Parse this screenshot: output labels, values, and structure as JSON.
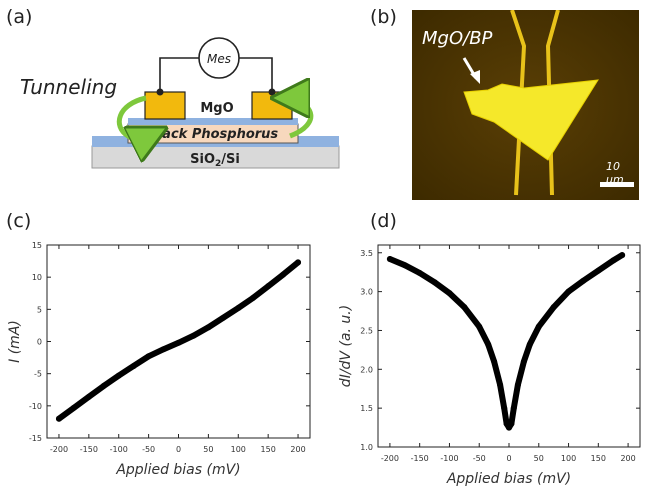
{
  "panels": {
    "a": {
      "label": "(a)",
      "tunneling": "Tunneling",
      "meter": "Mes",
      "mgo": "MgO",
      "bp": "Black Phosphorus",
      "substrate_main": "SiO",
      "substrate_sub": "2",
      "substrate_tail": "/Si",
      "colors": {
        "electrode": "#f2b90d",
        "mgo": "#8fb2e0",
        "bp": "#f7d8bd",
        "substrate": "#d9d9d9",
        "arrow": "#7ec83c"
      }
    },
    "b": {
      "label": "(b)",
      "sample_label": "MgO/BP",
      "scale_label": "10 µm",
      "colors": {
        "background": "#4a3300",
        "flake": "#f5e82a",
        "electrode": "#e8c21a"
      }
    },
    "c": {
      "label": "(c)"
    },
    "d": {
      "label": "(d)"
    }
  },
  "chart_data": [
    {
      "type": "line",
      "panel": "c",
      "xlabel": "Applied bias (mV)",
      "ylabel": "I (mA)",
      "xlim": [
        -220,
        220
      ],
      "ylim": [
        -15,
        15
      ],
      "xticks": [
        -200,
        -150,
        -100,
        -50,
        0,
        50,
        100,
        150,
        200
      ],
      "yticks": [
        -15,
        -10,
        -5,
        0,
        5,
        10,
        15
      ],
      "x": [
        -200,
        -175,
        -150,
        -125,
        -100,
        -75,
        -50,
        -25,
        0,
        25,
        50,
        75,
        100,
        125,
        150,
        175,
        200
      ],
      "y": [
        -12,
        -10.3,
        -8.6,
        -6.9,
        -5.3,
        -3.8,
        -2.3,
        -1.2,
        -0.2,
        0.9,
        2.2,
        3.7,
        5.2,
        6.8,
        8.6,
        10.4,
        12.3
      ],
      "color": "#000000"
    },
    {
      "type": "line",
      "panel": "d",
      "xlabel": "Applied bias (mV)",
      "ylabel": "dI/dV (a. u.)",
      "xlim": [
        -220,
        220
      ],
      "ylim": [
        1.0,
        3.6
      ],
      "xticks": [
        -200,
        -150,
        -100,
        -50,
        0,
        50,
        100,
        150,
        200
      ],
      "yticks": [
        1.0,
        1.5,
        2.0,
        2.5,
        3.0,
        3.5
      ],
      "x": [
        -200,
        -175,
        -150,
        -125,
        -100,
        -75,
        -50,
        -35,
        -25,
        -15,
        -8,
        -4,
        0,
        4,
        8,
        15,
        25,
        35,
        50,
        75,
        100,
        125,
        150,
        175,
        190
      ],
      "y": [
        3.42,
        3.34,
        3.24,
        3.12,
        2.98,
        2.8,
        2.55,
        2.32,
        2.1,
        1.8,
        1.5,
        1.3,
        1.25,
        1.3,
        1.5,
        1.8,
        2.1,
        2.32,
        2.55,
        2.8,
        3.0,
        3.14,
        3.27,
        3.4,
        3.47
      ],
      "color": "#000000"
    }
  ]
}
